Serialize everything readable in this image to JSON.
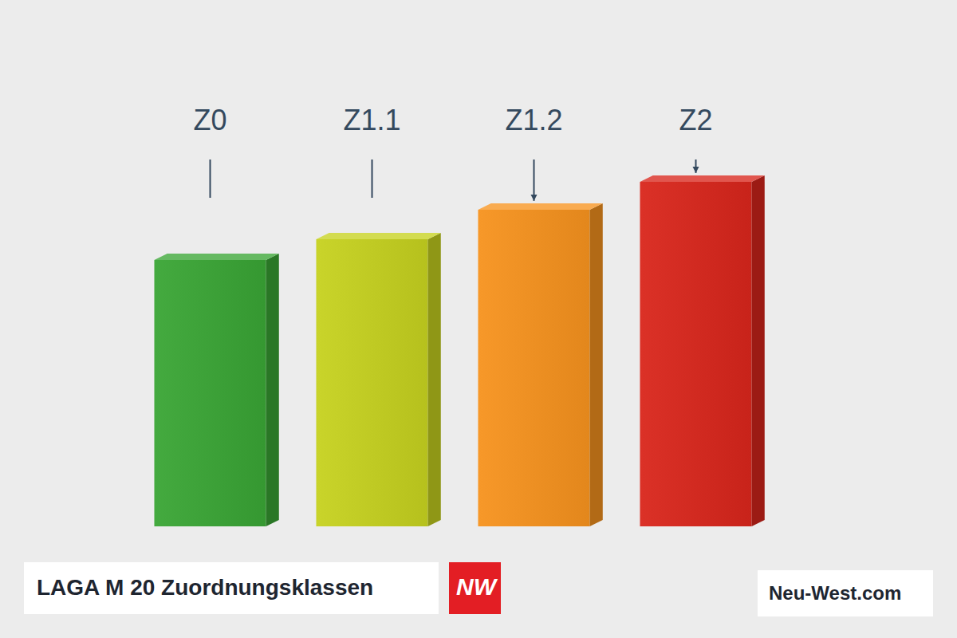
{
  "chart_data": {
    "type": "bar",
    "title": "LAGA M 20 Zuordnungsklassen",
    "logo": "NW",
    "website": "Neu-West.com",
    "categories": [
      "Z0",
      "Z1.1",
      "Z1.2",
      "Z2"
    ],
    "values": [
      334,
      360,
      397,
      432
    ],
    "colors": [
      "#3aa535",
      "#c6d21f",
      "#f7931e",
      "#d9261c"
    ],
    "ylim": [
      0,
      480
    ],
    "tick_labels": "x",
    "grid": false
  }
}
